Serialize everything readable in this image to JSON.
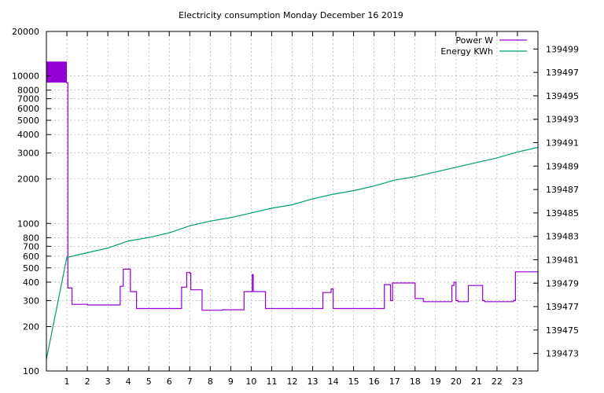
{
  "chart_data": {
    "type": "line",
    "title": "Electricity consumption Monday December 16 2019",
    "xlabel": "",
    "ylabel": "",
    "x_range": [
      0,
      24
    ],
    "x_ticks": [
      1,
      2,
      3,
      4,
      5,
      6,
      7,
      8,
      9,
      10,
      11,
      12,
      13,
      14,
      15,
      16,
      17,
      18,
      19,
      20,
      21,
      22,
      23
    ],
    "y_left": {
      "scale": "log",
      "range": [
        100,
        20000
      ],
      "ticks": [
        100,
        200,
        300,
        400,
        500,
        600,
        700,
        800,
        1000,
        2000,
        3000,
        4000,
        5000,
        6000,
        7000,
        8000,
        10000,
        20000
      ],
      "tick_labels": [
        "100",
        "200",
        "300",
        "400",
        "500",
        "600",
        "700",
        "800",
        "1000",
        "2000",
        "3000",
        "4000",
        "5000",
        "6000",
        "7000",
        "8000",
        "10000",
        "20000"
      ]
    },
    "y_right": {
      "scale": "linear",
      "range": [
        139471.5,
        139500.5
      ],
      "ticks": [
        139473,
        139475,
        139477,
        139479,
        139481,
        139483,
        139485,
        139487,
        139489,
        139491,
        139493,
        139495,
        139497,
        139499
      ],
      "tick_labels": [
        "139473",
        "139475",
        "139477",
        "139479",
        "139481",
        "139483",
        "139485",
        "139487",
        "139489",
        "139491",
        "139493",
        "139495",
        "139497",
        "139499"
      ]
    },
    "grid": true,
    "legend_position": "top-right",
    "power_band": {
      "x": [
        0,
        1
      ],
      "y": [
        9000,
        12500
      ],
      "color": "#9400d3"
    },
    "series": [
      {
        "name": "Power W",
        "axis": "left",
        "color": "#9400d3",
        "step": true,
        "x": [
          0.97,
          1.05,
          1.25,
          2.0,
          3.5,
          3.6,
          3.75,
          4.0,
          4.1,
          4.4,
          6.5,
          6.6,
          6.85,
          7.0,
          7.05,
          7.5,
          7.6,
          8.5,
          8.6,
          9.6,
          9.65,
          10.0,
          10.05,
          10.1,
          10.7,
          12.8,
          13.5,
          13.9,
          14.0,
          15.0,
          16.0,
          16.5,
          16.8,
          16.9,
          17.5,
          18.0,
          18.3,
          18.4,
          19.3,
          19.8,
          19.9,
          20.0,
          20.1,
          20.6,
          20.7,
          21.3,
          21.4,
          22.8,
          22.9,
          23.5,
          24.0
        ],
        "values": [
          9000,
          365,
          283,
          280,
          280,
          375,
          490,
          490,
          345,
          265,
          265,
          370,
          465,
          460,
          355,
          355,
          258,
          258,
          260,
          260,
          345,
          345,
          450,
          345,
          265,
          265,
          340,
          360,
          265,
          265,
          265,
          385,
          300,
          395,
          395,
          310,
          310,
          295,
          295,
          380,
          400,
          300,
          295,
          380,
          380,
          300,
          295,
          300,
          470,
          470,
          340
        ]
      },
      {
        "name": "Energy KWh",
        "axis": "right",
        "color": "#009e73",
        "x": [
          0.0,
          1.0,
          2.0,
          3.0,
          4.0,
          5.0,
          6.0,
          7.0,
          8.0,
          9.0,
          10.0,
          11.0,
          12.0,
          13.0,
          14.0,
          15.0,
          16.0,
          17.0,
          18.0,
          19.0,
          20.0,
          21.0,
          22.0,
          23.0,
          24.0
        ],
        "values": [
          139472.5,
          139481.2,
          139481.6,
          139482.0,
          139482.6,
          139482.9,
          139483.3,
          139483.9,
          139484.3,
          139484.6,
          139485.0,
          139485.4,
          139485.7,
          139486.2,
          139486.6,
          139486.9,
          139487.3,
          139487.8,
          139488.1,
          139488.5,
          139488.9,
          139489.3,
          139489.7,
          139490.2,
          139490.6
        ]
      }
    ]
  }
}
